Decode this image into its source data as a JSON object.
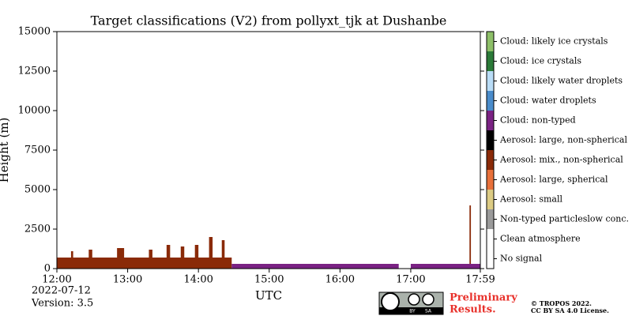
{
  "chart_data": {
    "type": "classification",
    "title": "Target classifications (V2) from pollyxt_tjk at Dushanbe",
    "y_label": "Height (m)",
    "x_label": "UTC",
    "xlim": [
      12,
      17.983
    ],
    "xticks": [
      {
        "value": 12,
        "label": "12:00"
      },
      {
        "value": 13,
        "label": "13:00"
      },
      {
        "value": 14,
        "label": "14:00"
      },
      {
        "value": 15,
        "label": "15:00"
      },
      {
        "value": 16,
        "label": "16:00"
      },
      {
        "value": 17,
        "label": "17:00"
      },
      {
        "value": 17.983,
        "label": "17:59"
      }
    ],
    "ylim": [
      0,
      15000
    ],
    "yticks": [
      0,
      2500,
      5000,
      7500,
      10000,
      12500,
      15000
    ],
    "legend": [
      {
        "label": "Cloud: likely ice crystals",
        "color": "#8dbf68"
      },
      {
        "label": "Cloud: ice crystals",
        "color": "#2b7a38"
      },
      {
        "label": "Cloud: likely water droplets",
        "color": "#b9dcf6"
      },
      {
        "label": "Cloud: water droplets",
        "color": "#4a8ccb"
      },
      {
        "label": "Cloud: non-typed",
        "color": "#7a2283"
      },
      {
        "label": "Aerosol: large, non-spherical",
        "color": "#000000"
      },
      {
        "label": "Aerosol: mix., non-spherical",
        "color": "#8a2a08"
      },
      {
        "label": "Aerosol: large, spherical",
        "color": "#e8703a"
      },
      {
        "label": "Aerosol: small",
        "color": "#dccb84"
      },
      {
        "label": "Non-typed particleslow conc.",
        "color": "#9a9a9a"
      },
      {
        "label": "Clean atmosphere",
        "color": "#ffffff"
      },
      {
        "label": "No signal",
        "color": "#ffffff"
      }
    ],
    "regions": [
      {
        "x": [
          12.0,
          14.47
        ],
        "y": [
          0,
          700
        ],
        "class": 6
      },
      {
        "x": [
          12.2,
          12.23
        ],
        "y": [
          0,
          1100
        ],
        "class": 6
      },
      {
        "x": [
          12.45,
          12.5
        ],
        "y": [
          0,
          1200
        ],
        "class": 6
      },
      {
        "x": [
          12.85,
          12.95
        ],
        "y": [
          0,
          1300
        ],
        "class": 6
      },
      {
        "x": [
          13.3,
          13.35
        ],
        "y": [
          0,
          1200
        ],
        "class": 6
      },
      {
        "x": [
          13.55,
          13.6
        ],
        "y": [
          0,
          1500
        ],
        "class": 6
      },
      {
        "x": [
          13.75,
          13.8
        ],
        "y": [
          0,
          1400
        ],
        "class": 6
      },
      {
        "x": [
          13.95,
          14.0
        ],
        "y": [
          0,
          1500
        ],
        "class": 6
      },
      {
        "x": [
          14.15,
          14.2
        ],
        "y": [
          0,
          2000
        ],
        "class": 6
      },
      {
        "x": [
          14.33,
          14.37
        ],
        "y": [
          0,
          1800
        ],
        "class": 6
      },
      {
        "x": [
          17.83,
          17.85
        ],
        "y": [
          0,
          4000
        ],
        "class": 6
      },
      {
        "x": [
          14.47,
          16.83
        ],
        "y": [
          0,
          300
        ],
        "class": 4
      },
      {
        "x": [
          17.0,
          17.983
        ],
        "y": [
          0,
          300
        ],
        "class": 4
      }
    ]
  },
  "footer": {
    "date": "2022-07-12",
    "version": "Version: 3.5",
    "status": [
      "Preliminary",
      "Results."
    ],
    "copyright": "© TROPOS 2022.",
    "license": "CC BY SA 4.0 License.",
    "badge": [
      "BY",
      "SA"
    ]
  }
}
